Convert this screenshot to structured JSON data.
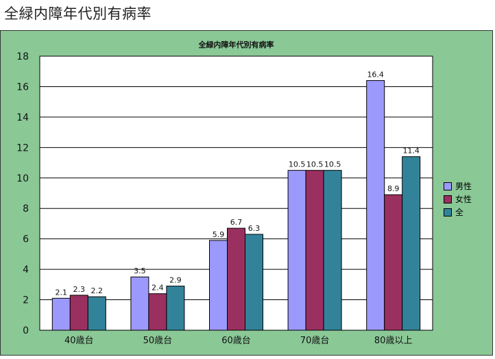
{
  "page": {
    "title": "全緑内障年代別有病率"
  },
  "chart_data": {
    "type": "bar",
    "title": "全緑内障年代別有病率",
    "categories": [
      "40歳台",
      "50歳台",
      "60歳台",
      "70歳台",
      "80歳以上"
    ],
    "series": [
      {
        "name": "男性",
        "color": "#9b99fb",
        "values": [
          2.1,
          3.5,
          5.9,
          10.5,
          16.4
        ],
        "labels": [
          "2.1",
          "3.5",
          "5.9",
          "10.5",
          "16.4"
        ]
      },
      {
        "name": "女性",
        "color": "#9a3060",
        "values": [
          2.3,
          2.4,
          6.7,
          10.5,
          8.9
        ],
        "labels": [
          "2.3",
          "2.4",
          "6.7",
          "10.5",
          "8.9"
        ]
      },
      {
        "name": "全",
        "color": "#32839a",
        "values": [
          2.2,
          2.9,
          6.3,
          10.5,
          11.4
        ],
        "labels": [
          "2.2",
          "2.9",
          "6.3",
          "10.5",
          "11.4"
        ]
      }
    ],
    "ylim": [
      0,
      18
    ],
    "yticks": [
      "0",
      "2",
      "4",
      "6",
      "8",
      "10",
      "12",
      "14",
      "16",
      "18"
    ],
    "grid": true,
    "legend_position": "right",
    "plot_background": "#ffffff",
    "chart_background": "#8ac896"
  }
}
